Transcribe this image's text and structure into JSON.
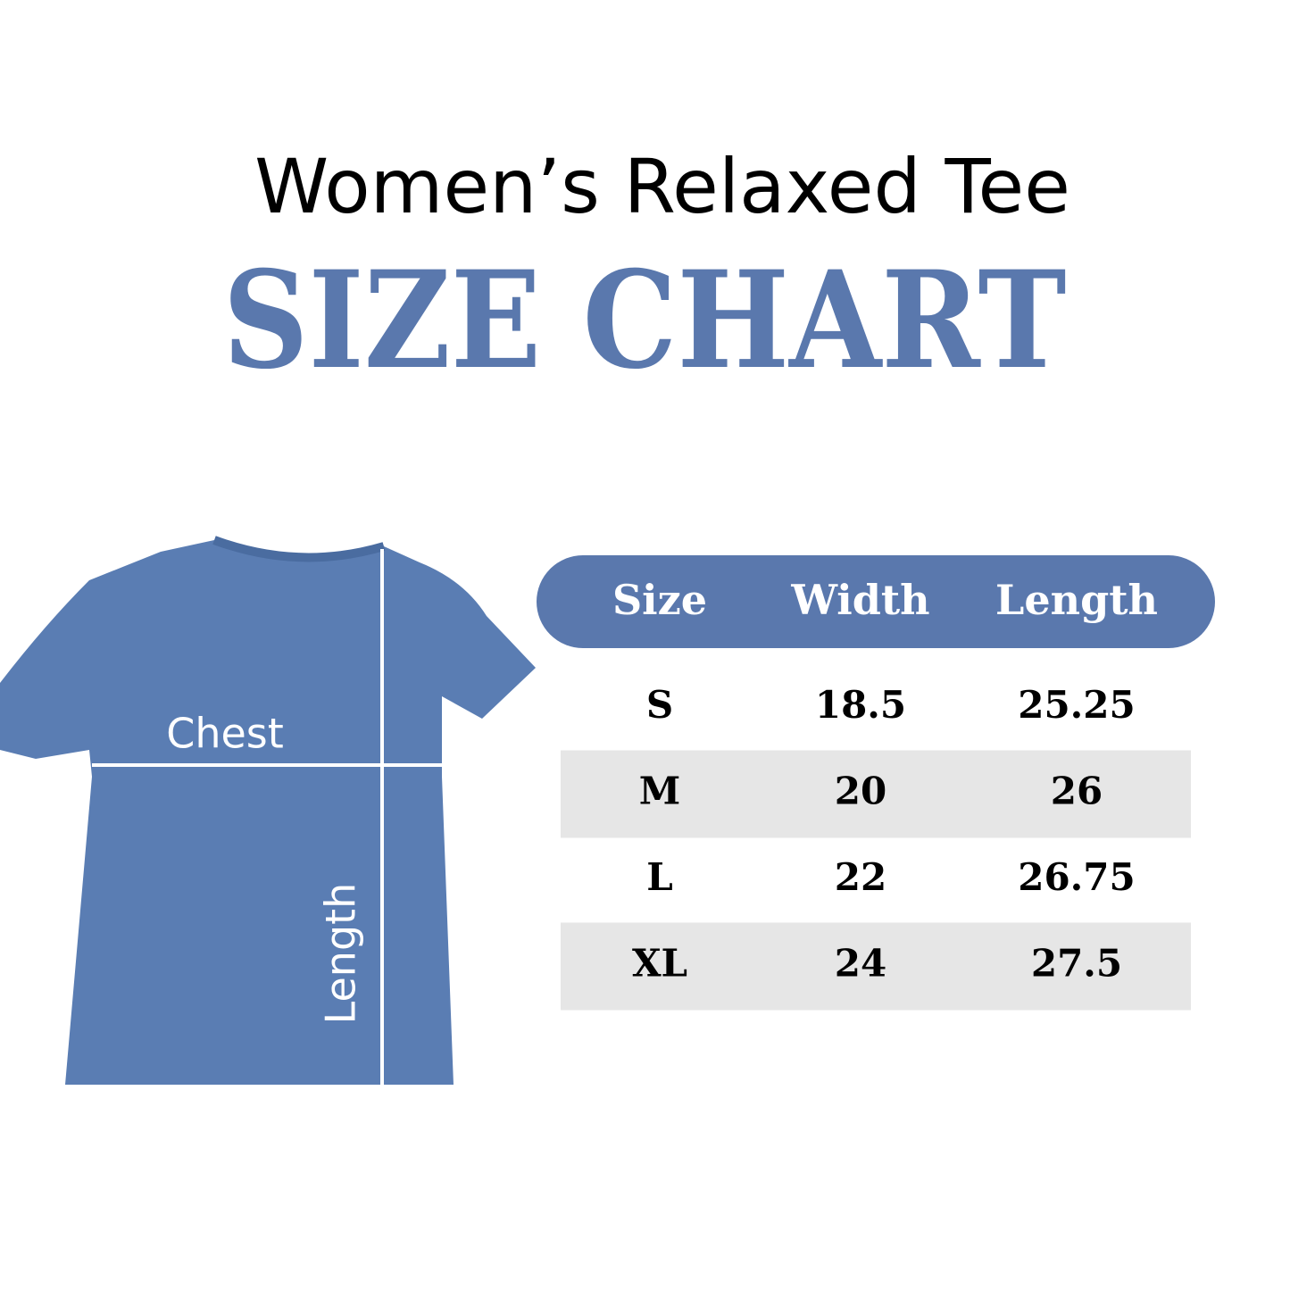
{
  "header": {
    "title": "Women’s Relaxed Tee",
    "subtitle": "SIZE CHART"
  },
  "diagram": {
    "chest_label": "Chest",
    "length_label": "Length"
  },
  "table": {
    "columns": [
      "Size",
      "Width",
      "Length"
    ],
    "rows": [
      [
        "S",
        "18.5",
        "25.25"
      ],
      [
        "M",
        "20",
        "26"
      ],
      [
        "L",
        "22",
        "26.75"
      ],
      [
        "XL",
        "24",
        "27.5"
      ]
    ]
  }
}
